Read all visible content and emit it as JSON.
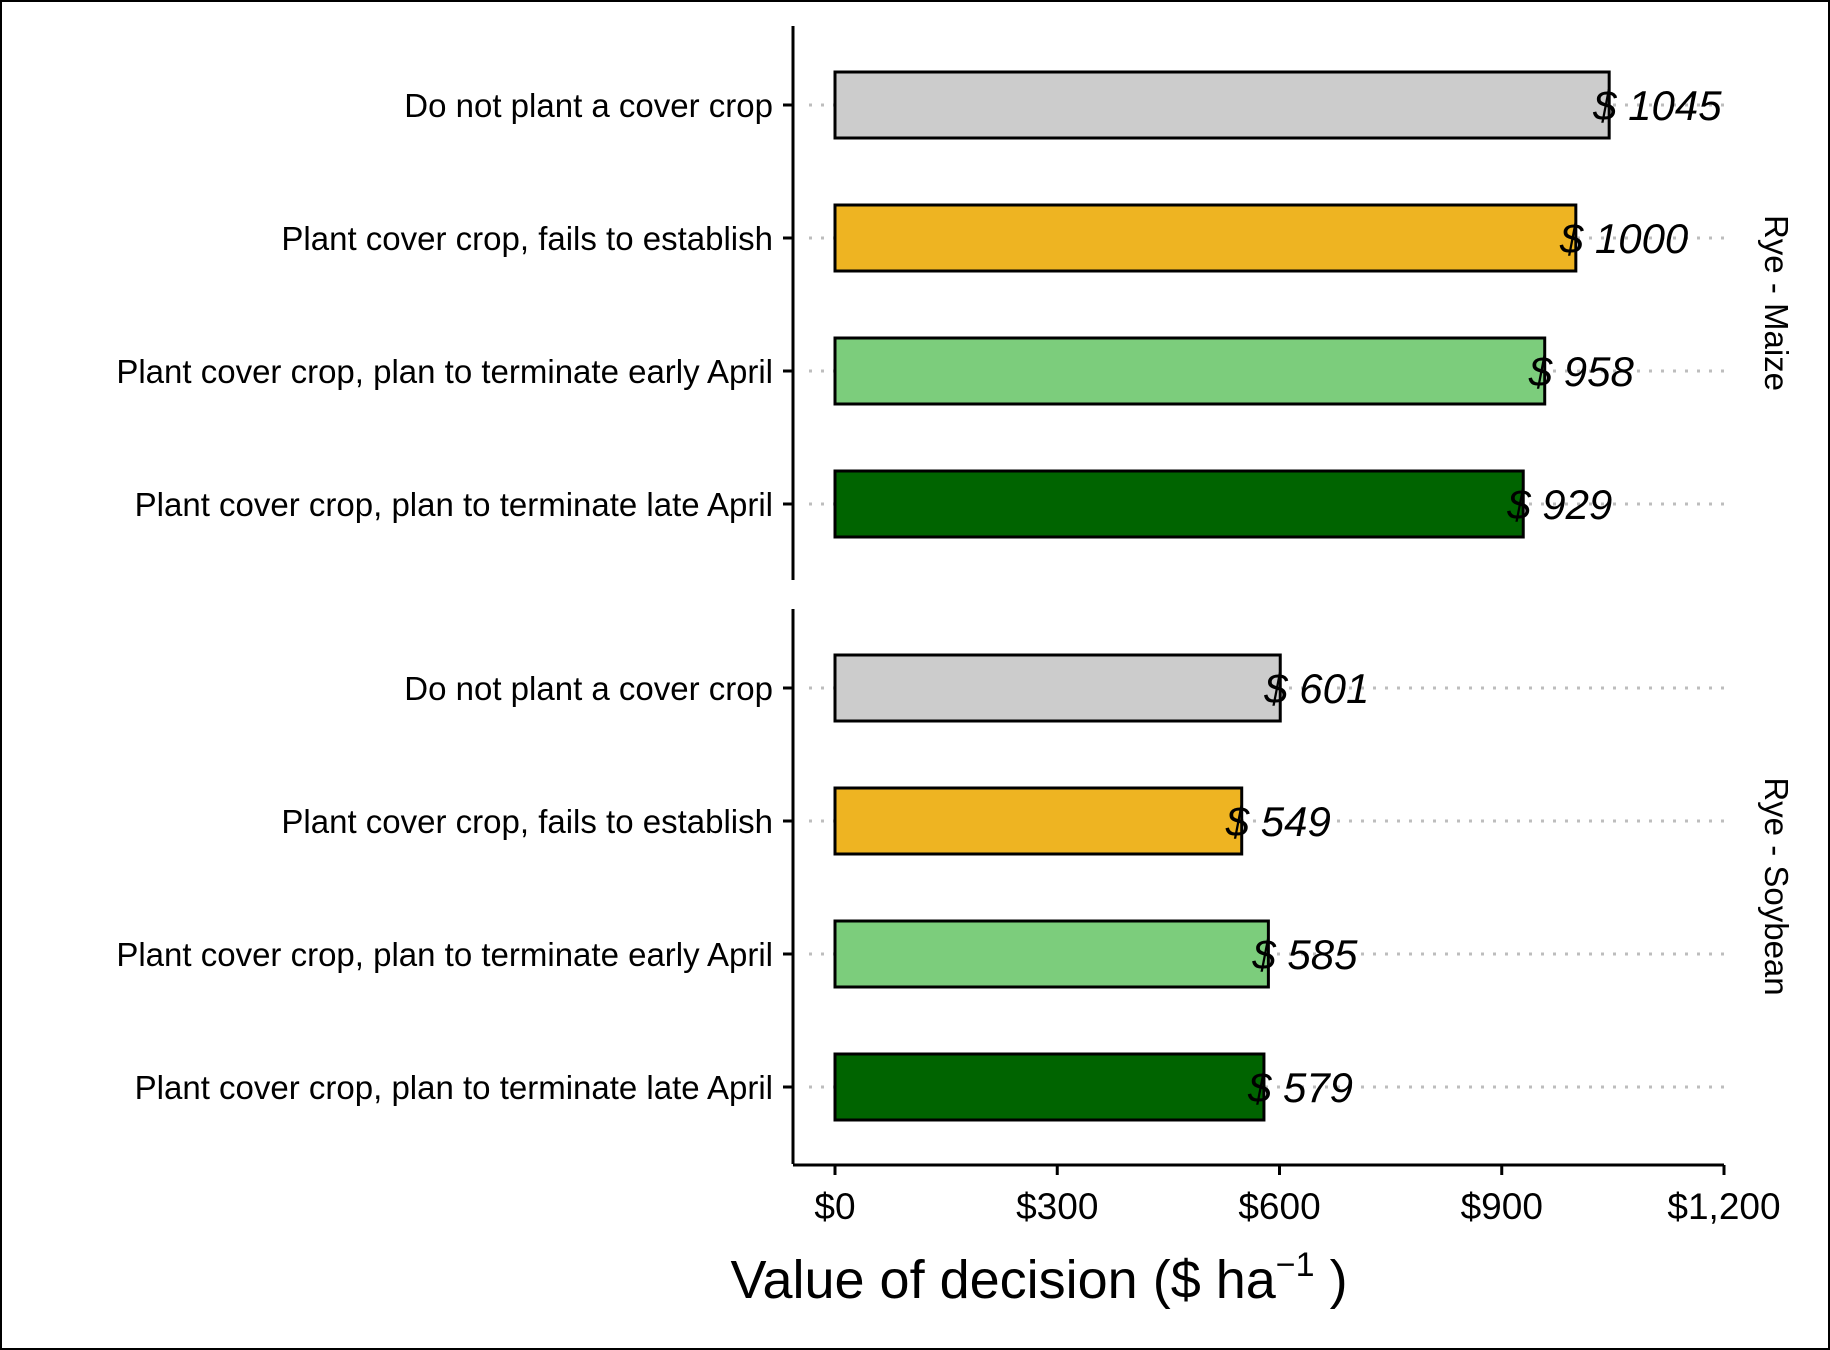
{
  "chart_data": {
    "type": "bar",
    "orientation": "horizontal",
    "xlabel": {
      "main": "Value of decision ($  ha",
      "superscript": "−1",
      "close": " )"
    },
    "xlim": [
      -57,
      1200
    ],
    "xticks": [
      0,
      300,
      600,
      900,
      1200
    ],
    "xtick_labels": [
      "$0",
      "$300",
      "$600",
      "$900",
      "$1,200"
    ],
    "grid": "dotted horizontal guide lines",
    "legend": "none",
    "panels": [
      {
        "facet": "Rye - Maize",
        "bars": [
          {
            "category": "Do not plant a cover crop",
            "value": 1045,
            "label": "$ 1045",
            "color": "#cccccc"
          },
          {
            "category": "Plant cover crop, fails to establish",
            "value": 1000,
            "label": "$ 1000",
            "color": "#eeb422"
          },
          {
            "category": "Plant cover crop, plan to terminate early April",
            "value": 958,
            "label": "$ 958",
            "color": "#7ccd7c"
          },
          {
            "category": "Plant cover crop, plan to terminate late April",
            "value": 929,
            "label": "$ 929",
            "color": "#006400"
          }
        ]
      },
      {
        "facet": "Rye - Soybean",
        "bars": [
          {
            "category": "Do not plant a cover crop",
            "value": 601,
            "label": "$ 601",
            "color": "#cccccc"
          },
          {
            "category": "Plant cover crop, fails to establish",
            "value": 549,
            "label": "$ 549",
            "color": "#eeb422"
          },
          {
            "category": "Plant cover crop, plan to terminate early April",
            "value": 585,
            "label": "$ 585",
            "color": "#7ccd7c"
          },
          {
            "category": "Plant cover crop, plan to terminate late April",
            "value": 579,
            "label": "$ 579",
            "color": "#006400"
          }
        ]
      }
    ]
  }
}
